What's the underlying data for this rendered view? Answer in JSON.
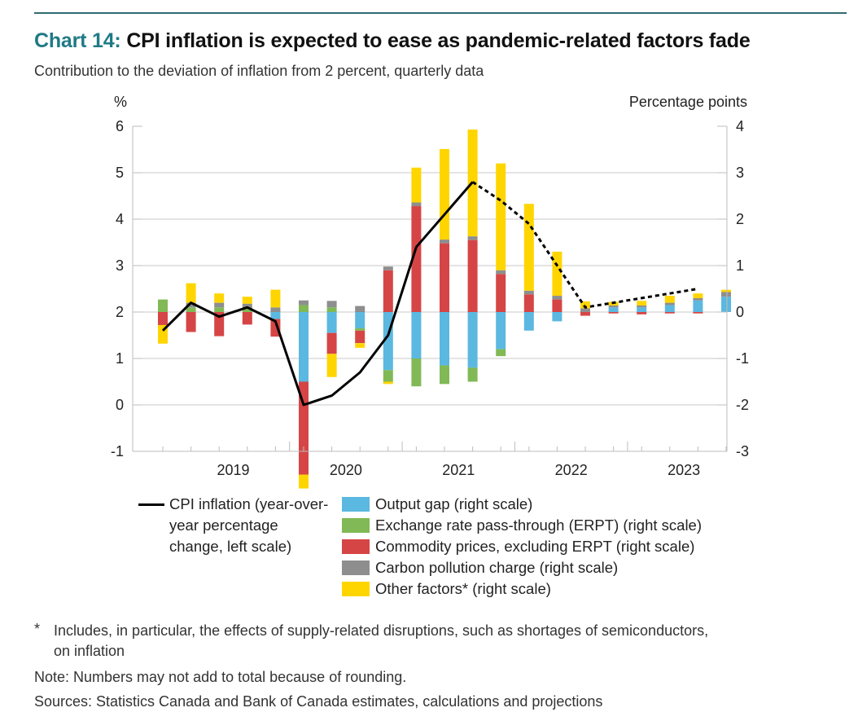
{
  "header": {
    "chart_number": "Chart 14:",
    "title": "CPI inflation is expected to ease as pandemic-related factors fade",
    "subtitle": "Contribution to the deviation of inflation from 2 percent, quarterly data"
  },
  "colors": {
    "output_gap": "#5bb8e0",
    "erpt": "#80b956",
    "commodity": "#d64545",
    "carbon": "#8e8e8e",
    "other": "#ffd500",
    "cpi_line": "#000000",
    "accent": "#1f7a86"
  },
  "chart_data": {
    "type": "bar",
    "stacked": true,
    "left_axis": {
      "label": "%",
      "range": [
        -1,
        6
      ],
      "ticks": [
        -1,
        0,
        1,
        2,
        3,
        4,
        5,
        6
      ]
    },
    "right_axis": {
      "label": "Percentage points",
      "range": [
        -3,
        4
      ],
      "ticks": [
        -3,
        -2,
        -1,
        0,
        1,
        2,
        3,
        4
      ]
    },
    "year_labels": [
      "2019",
      "2020",
      "2021",
      "2022",
      "2023"
    ],
    "categories": [
      "2018Q4",
      "2019Q1",
      "2019Q2",
      "2019Q3",
      "2019Q4",
      "2020Q1",
      "2020Q2",
      "2020Q3",
      "2020Q4",
      "2021Q1",
      "2021Q2",
      "2021Q3",
      "2021Q4",
      "2022Q1",
      "2022Q2",
      "2022Q3",
      "2022Q4",
      "2023Q1",
      "2023Q2",
      "2023Q3",
      "2023Q4"
    ],
    "series": [
      {
        "name": "Output gap (right scale)",
        "key": "output_gap",
        "values": [
          0,
          0,
          0,
          0,
          -0.15,
          -1.5,
          -0.45,
          -0.35,
          -1.25,
          -1.0,
          -1.15,
          -1.2,
          -0.8,
          -0.4,
          -0.2,
          0,
          0.1,
          0.1,
          0.15,
          0.25,
          0.33
        ]
      },
      {
        "name": "Exchange rate pass-through (ERPT) (right scale)",
        "key": "erpt",
        "values": [
          0.27,
          0.1,
          0.1,
          0.08,
          0,
          0.15,
          0.1,
          -0.05,
          -0.25,
          -0.6,
          -0.4,
          -0.3,
          -0.15,
          0,
          0,
          0,
          0,
          0,
          0,
          0,
          0
        ]
      },
      {
        "name": "Commodity prices, excluding ERPT (right scale)",
        "key": "commodity",
        "values": [
          -0.28,
          -0.43,
          -0.52,
          -0.27,
          -0.38,
          -2.0,
          -0.45,
          -0.27,
          0.9,
          2.28,
          1.48,
          1.55,
          0.82,
          0.38,
          0.27,
          -0.08,
          -0.03,
          -0.05,
          -0.03,
          -0.03,
          0
        ]
      },
      {
        "name": "Carbon pollution charge (right scale)",
        "key": "carbon",
        "values": [
          0,
          0.1,
          0.1,
          0.1,
          0.1,
          0.1,
          0.14,
          0.13,
          0.08,
          0.08,
          0.08,
          0.08,
          0.08,
          0.08,
          0.08,
          0.08,
          0.04,
          0.04,
          0.05,
          0.05,
          0.1
        ]
      },
      {
        "name": "Other factors* (right scale)",
        "key": "other",
        "values": [
          -0.4,
          0.42,
          0.2,
          0.15,
          0.38,
          -0.3,
          -0.5,
          -0.1,
          -0.05,
          0.75,
          1.95,
          2.3,
          2.3,
          1.87,
          0.95,
          0.15,
          0.08,
          0.1,
          0.15,
          0.1,
          0.05
        ]
      }
    ],
    "cpi_line": {
      "name": "CPI inflation (year-over-year percentage change, left scale)",
      "actual": [
        1.6,
        2.2,
        1.9,
        2.1,
        1.8,
        0.0,
        0.2,
        0.7,
        1.5,
        3.4,
        4.1,
        4.8
      ],
      "projected": [
        4.8,
        4.4,
        3.9,
        3.0,
        2.1,
        2.2,
        2.3,
        2.4,
        2.5
      ],
      "projection_start_index": 11
    },
    "legend_placement": "bottom"
  },
  "legend": {
    "cpi_label": "CPI inflation (year-over-year percentage change, left scale)",
    "items": [
      {
        "key": "output_gap",
        "label": "Output gap (right scale)"
      },
      {
        "key": "erpt",
        "label": "Exchange rate pass-through (ERPT) (right scale)"
      },
      {
        "key": "commodity",
        "label": "Commodity prices, excluding ERPT (right scale)"
      },
      {
        "key": "carbon",
        "label": "Carbon pollution charge (right scale)"
      },
      {
        "key": "other",
        "label": "Other factors* (right scale)"
      }
    ]
  },
  "footnotes": {
    "star": "*",
    "star_text_line1": "Includes, in particular, the effects of supply-related disruptions, such as shortages of semiconductors,",
    "star_text_line2": "on inflation",
    "note": "Note: Numbers may not add to total because of rounding.",
    "sources": "Sources: Statistics Canada and Bank of Canada estimates, calculations and projections"
  }
}
